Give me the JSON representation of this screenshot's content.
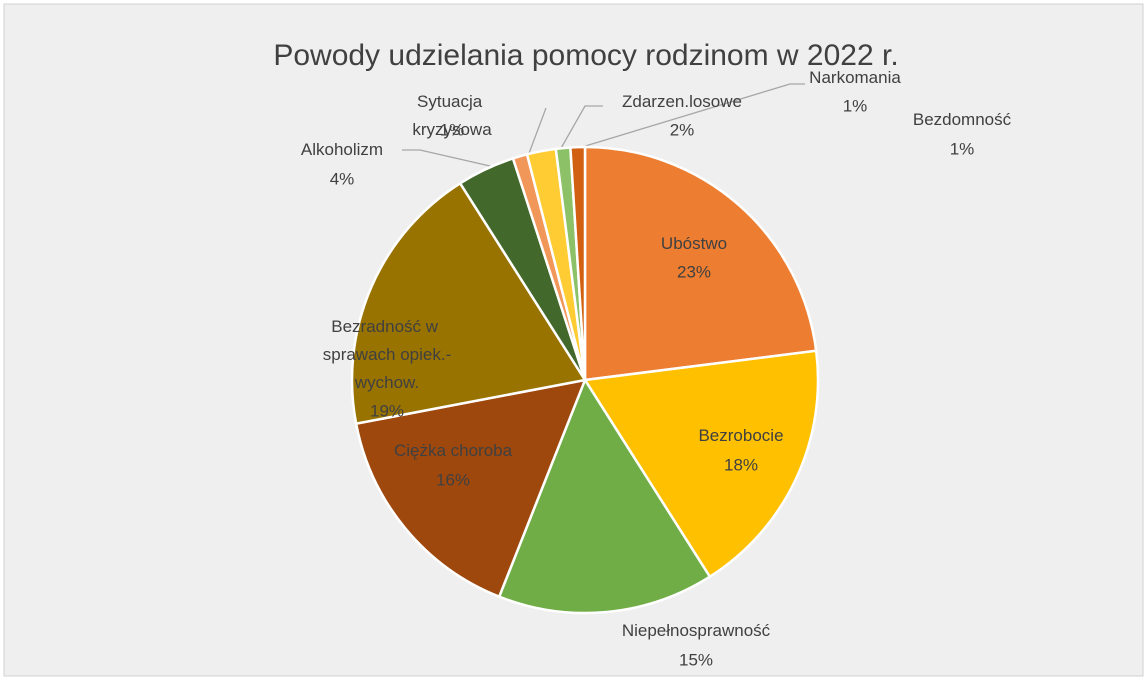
{
  "chart_data": {
    "type": "pie",
    "title": "Powody udzielania pomocy rodzinom w 2022 r.",
    "categories": [
      "Ubóstwo",
      "Bezrobocie",
      "Niepełnosprawność",
      "Ciężka choroba",
      "Bezradność w sprawach opiek.-wychow.",
      "Alkoholizm",
      "Sytuacja kryzysowa",
      "Zdarzen.losowe",
      "Narkomania",
      "Bezdomność"
    ],
    "values": [
      23,
      18,
      15,
      16,
      19,
      4,
      1,
      2,
      1,
      1
    ],
    "value_labels": [
      "23%",
      "18%",
      "15%",
      "16%",
      "19%",
      "4%",
      "1%",
      "2%",
      "1%",
      "1%"
    ],
    "colors": [
      "#ED7D31",
      "#FFC000",
      "#70AD47",
      "#9E480E",
      "#997300",
      "#43682B",
      "#F1975A",
      "#FFCD33",
      "#8CC168",
      "#D26012"
    ]
  }
}
